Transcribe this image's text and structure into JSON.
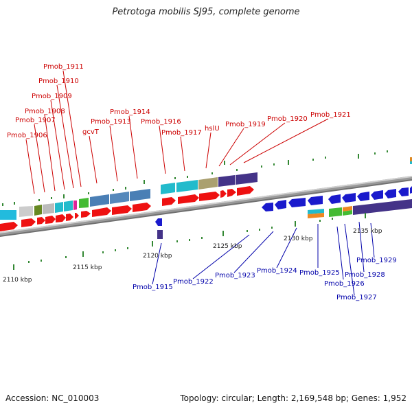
{
  "title": "Petrotoga mobilis SJ95, complete genome",
  "footer": {
    "accession": "Accession: NC_010003",
    "summary": "Topology: circular; Length: 2,169,548 bp; Genes: 1,952"
  },
  "colors": {
    "forward_label": "#cc0000",
    "reverse_label": "#0000aa",
    "forward_strand": "#ee1111",
    "reverse_strand": "#1a1acc",
    "tick": "#338833",
    "backbone": "#999999"
  },
  "scale_labels": [
    "2110 kbp",
    "2115 kbp",
    "2120 kbp",
    "2125 kbp",
    "2130 kbp",
    "2135 kbp"
  ],
  "forward_genes": [
    "Pmob_1906",
    "Pmob_1907",
    "Pmob_1908",
    "Pmob_1909",
    "Pmob_1910",
    "Pmob_1911",
    "gcvT",
    "Pmob_1913",
    "Pmob_1914",
    "Pmob_1916",
    "Pmob_1917",
    "hslU",
    "Pmob_1919",
    "Pmob_1920",
    "Pmob_1921"
  ],
  "reverse_genes": [
    "Pmob_1915",
    "Pmob_1922",
    "Pmob_1923",
    "Pmob_1924",
    "Pmob_1925",
    "Pmob_1926",
    "Pmob_1927",
    "Pmob_1928",
    "Pmob_1929"
  ]
}
